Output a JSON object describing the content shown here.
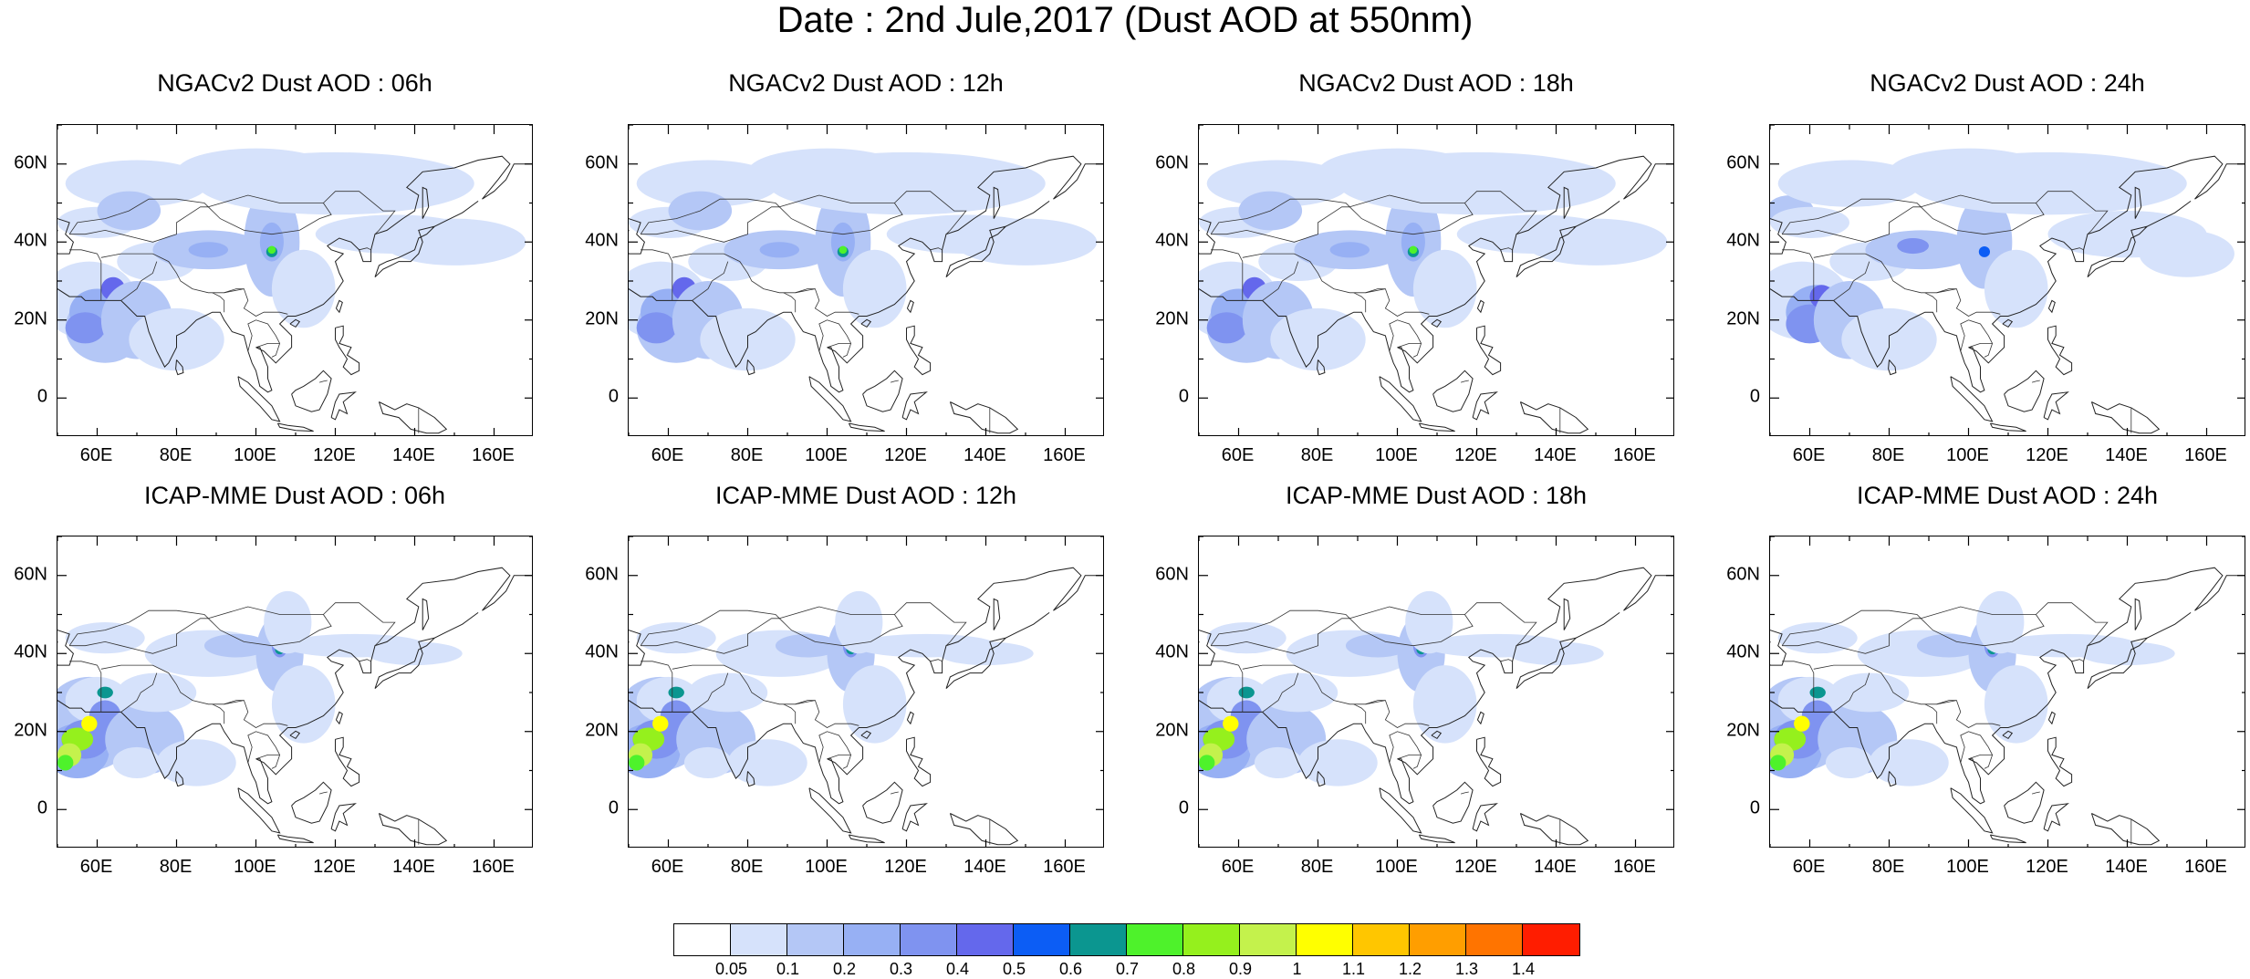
{
  "title": "Date : 2nd Jule,2017 (Dust AOD at 550nm)",
  "x_ticks": [
    "60E",
    "80E",
    "100E",
    "120E",
    "140E",
    "160E"
  ],
  "y_ticks": [
    "60N",
    "40N",
    "20N",
    "0"
  ],
  "map_extent": {
    "lon": [
      50,
      170
    ],
    "lat": [
      -10,
      70
    ]
  },
  "panels": [
    {
      "title": "NGACv2 Dust AOD : 06h",
      "model": "NGACv2",
      "hour": "06h"
    },
    {
      "title": "NGACv2 Dust AOD : 12h",
      "model": "NGACv2",
      "hour": "12h"
    },
    {
      "title": "NGACv2 Dust AOD : 18h",
      "model": "NGACv2",
      "hour": "18h"
    },
    {
      "title": "NGACv2 Dust AOD : 24h",
      "model": "NGACv2",
      "hour": "24h"
    },
    {
      "title": "ICAP-MME Dust AOD : 06h",
      "model": "ICAP-MME",
      "hour": "06h"
    },
    {
      "title": "ICAP-MME Dust AOD : 12h",
      "model": "ICAP-MME",
      "hour": "12h"
    },
    {
      "title": "ICAP-MME Dust AOD : 18h",
      "model": "ICAP-MME",
      "hour": "18h"
    },
    {
      "title": "ICAP-MME Dust AOD : 24h",
      "model": "ICAP-MME",
      "hour": "24h"
    }
  ],
  "colorbar": {
    "labels": [
      "0.05",
      "0.1",
      "0.2",
      "0.3",
      "0.4",
      "0.5",
      "0.6",
      "0.7",
      "0.8",
      "0.9",
      "1",
      "1.1",
      "1.2",
      "1.3",
      "1.4"
    ],
    "colors": [
      "#ffffff",
      "#d6e2fb",
      "#b4c7f6",
      "#97b0f4",
      "#7f93f0",
      "#6468ec",
      "#0c5df5",
      "#0b9690",
      "#4ef22b",
      "#95f01d",
      "#c4f24c",
      "#ffff00",
      "#ffc600",
      "#ff9e00",
      "#ff7400",
      "#ff1d00"
    ]
  }
}
